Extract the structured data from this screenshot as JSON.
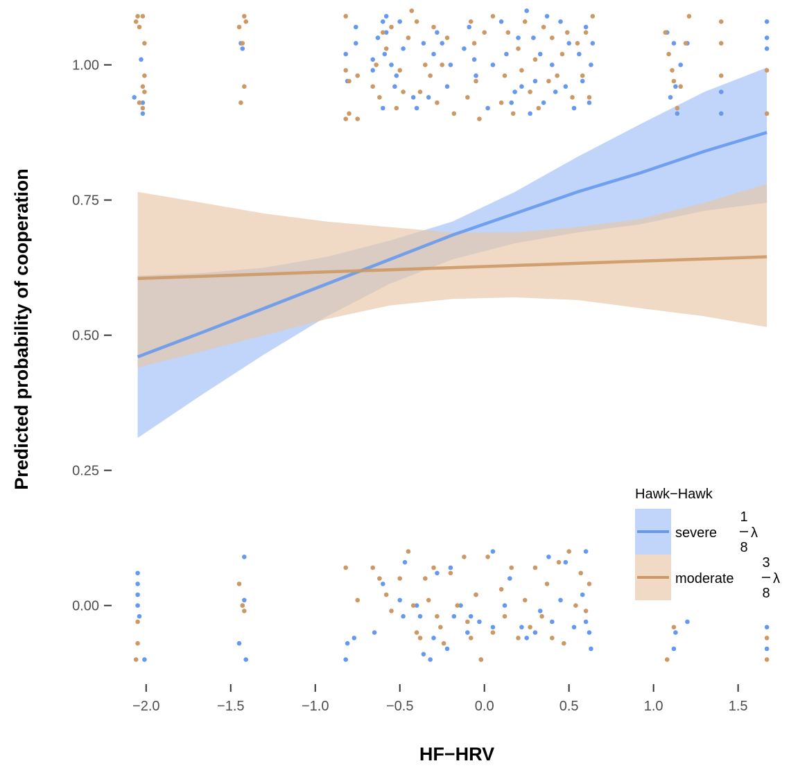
{
  "chart_data": {
    "type": "line",
    "xlabel": "HF−HRV",
    "ylabel": "Predicted probability of cooperation",
    "xlim": [
      -2.2,
      1.85
    ],
    "ylim": [
      -0.13,
      1.12
    ],
    "x_ticks": [
      -2.0,
      -1.5,
      -1.0,
      -0.5,
      0.0,
      0.5,
      1.0,
      1.5
    ],
    "x_tick_labels": [
      "−2.0",
      "−1.5",
      "−1.0",
      "−0.5",
      "0.0",
      "0.5",
      "1.0",
      "1.5"
    ],
    "y_ticks": [
      0.0,
      0.25,
      0.5,
      0.75,
      1.0
    ],
    "y_tick_labels": [
      "0.00",
      "0.25",
      "0.50",
      "0.75",
      "1.00"
    ],
    "grid": false,
    "legend": {
      "title": "Hawk−Hawk",
      "placement": "right",
      "entries": [
        {
          "label": "severe",
          "frac_num": "1",
          "frac_den": "8",
          "symbol": "λ"
        },
        {
          "label": "moderate",
          "frac_num": "3",
          "frac_den": "8",
          "symbol": "λ"
        }
      ]
    },
    "x_observed": [
      -2.05,
      -1.43,
      -0.82,
      -0.75,
      -0.6,
      -0.55,
      -0.5,
      -0.45,
      -0.4,
      -0.35,
      -0.3,
      -0.25,
      -0.2,
      -0.1,
      -0.08,
      0.0,
      0.05,
      0.12,
      0.18,
      0.25,
      0.3,
      0.35,
      0.4,
      0.45,
      0.5,
      0.6,
      0.64,
      1.08,
      1.12,
      1.15,
      1.2,
      1.4,
      1.67
    ],
    "series": [
      {
        "name": "severe",
        "color": "#6699ee",
        "band_color": "#9fbff7",
        "x": [
          -2.05,
          -1.67,
          -1.3,
          -0.93,
          -0.56,
          -0.19,
          0.18,
          0.55,
          0.92,
          1.3,
          1.67
        ],
        "y": [
          0.46,
          0.505,
          0.55,
          0.595,
          0.64,
          0.685,
          0.725,
          0.765,
          0.8,
          0.84,
          0.875
        ],
        "lower": [
          0.31,
          0.39,
          0.465,
          0.535,
          0.595,
          0.64,
          0.67,
          0.69,
          0.705,
          0.73,
          0.745
        ],
        "upper": [
          0.61,
          0.615,
          0.625,
          0.645,
          0.675,
          0.71,
          0.765,
          0.83,
          0.89,
          0.95,
          0.995
        ],
        "points_high": [
          [
            -2.07,
            0.94
          ],
          [
            -2.03,
            1.01
          ],
          [
            -2.02,
            0.93
          ],
          [
            -2.02,
            0.91
          ],
          [
            -1.44,
            1.04
          ],
          [
            -1.43,
            1.03
          ],
          [
            -0.82,
            1.02
          ],
          [
            -0.81,
            0.97
          ],
          [
            -0.76,
            1.07
          ],
          [
            -0.76,
            1.04
          ],
          [
            -0.66,
            0.99
          ],
          [
            -0.66,
            1.01
          ],
          [
            -0.63,
            1.05
          ],
          [
            -0.6,
            0.92
          ],
          [
            -0.6,
            1.08
          ],
          [
            -0.59,
            1.02
          ],
          [
            -0.58,
            1.09
          ],
          [
            -0.58,
            1.06
          ],
          [
            -0.55,
            1.0
          ],
          [
            -0.53,
            0.96
          ],
          [
            -0.52,
            0.98
          ],
          [
            -0.5,
            1.08
          ],
          [
            -0.48,
            1.03
          ],
          [
            -0.42,
            0.94
          ],
          [
            -0.4,
            0.92
          ],
          [
            -0.36,
            1.04
          ],
          [
            -0.33,
            0.94
          ],
          [
            -0.3,
            1.02
          ],
          [
            -0.28,
            1.06
          ],
          [
            -0.25,
            1.04
          ],
          [
            -0.22,
            0.96
          ],
          [
            -0.2,
            1.0
          ],
          [
            -0.12,
            1.03
          ],
          [
            -0.09,
            1.07
          ],
          [
            -0.06,
            1.01
          ],
          [
            -0.05,
            0.98
          ],
          [
            0.02,
            0.92
          ],
          [
            0.05,
            1.0
          ],
          [
            0.1,
            1.08
          ],
          [
            0.13,
            1.02
          ],
          [
            0.16,
            0.93
          ],
          [
            0.18,
            0.95
          ],
          [
            0.2,
            1.05
          ],
          [
            0.22,
            0.96
          ],
          [
            0.25,
            1.1
          ],
          [
            0.27,
            0.91
          ],
          [
            0.29,
            1.05
          ],
          [
            0.3,
            0.97
          ],
          [
            0.33,
            1.02
          ],
          [
            0.35,
            0.93
          ],
          [
            0.37,
            1.09
          ],
          [
            0.4,
            1.0
          ],
          [
            0.42,
            0.95
          ],
          [
            0.45,
            1.08
          ],
          [
            0.48,
            0.96
          ],
          [
            0.5,
            1.04
          ],
          [
            0.53,
            0.92
          ],
          [
            0.56,
            1.02
          ],
          [
            0.58,
            0.97
          ],
          [
            0.6,
            1.07
          ],
          [
            0.62,
            0.93
          ],
          [
            0.63,
            1.0
          ],
          [
            0.64,
            1.04
          ],
          [
            1.08,
            1.06
          ],
          [
            1.1,
            0.94
          ],
          [
            1.12,
            1.04
          ],
          [
            1.13,
            0.96
          ],
          [
            1.14,
            0.91
          ],
          [
            1.16,
            1.0
          ],
          [
            1.2,
            1.04
          ],
          [
            1.4,
            0.95
          ],
          [
            1.4,
            0.91
          ],
          [
            1.67,
            1.08
          ],
          [
            1.67,
            1.05
          ],
          [
            1.67,
            1.03
          ]
        ],
        "points_low": [
          [
            -2.05,
            0.06
          ],
          [
            -2.05,
            0.04
          ],
          [
            -2.05,
            0.02
          ],
          [
            -2.05,
            0.0
          ],
          [
            -2.04,
            -0.02
          ],
          [
            -2.01,
            -0.1
          ],
          [
            -1.43,
            0.0
          ],
          [
            -1.42,
            0.09
          ],
          [
            -1.42,
            0.01
          ],
          [
            -1.45,
            -0.07
          ],
          [
            -1.41,
            -0.1
          ],
          [
            -0.81,
            -0.07
          ],
          [
            -0.82,
            -0.1
          ],
          [
            -0.77,
            -0.06
          ],
          [
            -0.65,
            -0.05
          ],
          [
            -0.6,
            0.04
          ],
          [
            -0.5,
            0.01
          ],
          [
            -0.48,
            -0.02
          ],
          [
            -0.47,
            0.08
          ],
          [
            -0.4,
            0.0
          ],
          [
            -0.38,
            -0.02
          ],
          [
            -0.36,
            -0.09
          ],
          [
            -0.32,
            -0.1
          ],
          [
            -0.3,
            -0.06
          ],
          [
            -0.28,
            0.06
          ],
          [
            -0.22,
            -0.08
          ],
          [
            -0.2,
            0.07
          ],
          [
            -0.18,
            -0.02
          ],
          [
            -0.14,
            0.0
          ],
          [
            -0.1,
            -0.05
          ],
          [
            -0.08,
            -0.02
          ],
          [
            -0.05,
            0.02
          ],
          [
            -0.03,
            -0.03
          ],
          [
            -0.02,
            -0.1
          ],
          [
            0.05,
            0.1
          ],
          [
            0.05,
            -0.04
          ],
          [
            0.12,
            0.0
          ],
          [
            0.15,
            0.05
          ],
          [
            0.22,
            -0.04
          ],
          [
            0.25,
            -0.06
          ],
          [
            0.3,
            -0.05
          ],
          [
            0.33,
            -0.01
          ],
          [
            0.38,
            0.09
          ],
          [
            0.4,
            -0.03
          ],
          [
            0.45,
            0.01
          ],
          [
            0.48,
            0.08
          ],
          [
            0.53,
            -0.04
          ],
          [
            0.58,
            0.02
          ],
          [
            0.6,
            0.1
          ],
          [
            0.6,
            -0.03
          ],
          [
            0.62,
            -0.05
          ],
          [
            0.63,
            -0.08
          ],
          [
            1.12,
            -0.08
          ],
          [
            1.13,
            -0.05
          ],
          [
            1.2,
            -0.03
          ],
          [
            1.67,
            -0.04
          ],
          [
            1.67,
            -0.08
          ]
        ]
      },
      {
        "name": "moderate",
        "color": "#cc9966",
        "band_color": "#e8c6a6",
        "x": [
          -2.05,
          -1.67,
          -1.3,
          -0.93,
          -0.56,
          -0.19,
          0.18,
          0.55,
          0.92,
          1.3,
          1.67
        ],
        "y": [
          0.605,
          0.609,
          0.613,
          0.617,
          0.621,
          0.625,
          0.629,
          0.633,
          0.637,
          0.641,
          0.645
        ],
        "lower": [
          0.44,
          0.47,
          0.5,
          0.53,
          0.555,
          0.567,
          0.57,
          0.565,
          0.55,
          0.535,
          0.515
        ],
        "upper": [
          0.765,
          0.745,
          0.725,
          0.71,
          0.7,
          0.69,
          0.69,
          0.7,
          0.715,
          0.745,
          0.78
        ],
        "points_high": [
          [
            -2.06,
            1.08
          ],
          [
            -2.05,
            1.09
          ],
          [
            -2.04,
            1.07
          ],
          [
            -2.02,
            1.09
          ],
          [
            -2.01,
            1.04
          ],
          [
            -2.01,
            0.98
          ],
          [
            -2.02,
            0.96
          ],
          [
            -2.01,
            0.95
          ],
          [
            -2.04,
            0.93
          ],
          [
            -2.02,
            0.92
          ],
          [
            -1.45,
            1.07
          ],
          [
            -1.42,
            1.09
          ],
          [
            -1.41,
            1.08
          ],
          [
            -1.43,
            1.04
          ],
          [
            -1.42,
            0.96
          ],
          [
            -1.44,
            0.93
          ],
          [
            -0.82,
            1.09
          ],
          [
            -0.82,
            0.99
          ],
          [
            -0.8,
            0.97
          ],
          [
            -0.8,
            0.91
          ],
          [
            -0.82,
            0.9
          ],
          [
            -0.75,
            0.9
          ],
          [
            -0.75,
            0.98
          ],
          [
            -0.66,
            0.96
          ],
          [
            -0.64,
            1.0
          ],
          [
            -0.62,
            0.94
          ],
          [
            -0.6,
            1.06
          ],
          [
            -0.58,
            1.03
          ],
          [
            -0.55,
            1.07
          ],
          [
            -0.52,
            0.92
          ],
          [
            -0.5,
            0.99
          ],
          [
            -0.48,
            0.95
          ],
          [
            -0.45,
            1.05
          ],
          [
            -0.43,
            1.1
          ],
          [
            -0.4,
            1.08
          ],
          [
            -0.38,
            0.95
          ],
          [
            -0.35,
            1.0
          ],
          [
            -0.32,
            0.98
          ],
          [
            -0.3,
            1.07
          ],
          [
            -0.28,
            0.93
          ],
          [
            -0.25,
            1.0
          ],
          [
            -0.22,
            1.05
          ],
          [
            -0.18,
            0.91
          ],
          [
            -0.1,
            0.94
          ],
          [
            -0.08,
            1.08
          ],
          [
            -0.06,
            1.04
          ],
          [
            -0.05,
            0.97
          ],
          [
            -0.03,
            0.9
          ],
          [
            0.0,
            1.06
          ],
          [
            0.05,
            1.09
          ],
          [
            0.1,
            0.93
          ],
          [
            0.12,
            0.98
          ],
          [
            0.14,
            1.06
          ],
          [
            0.17,
            0.91
          ],
          [
            0.2,
            1.03
          ],
          [
            0.22,
            0.99
          ],
          [
            0.24,
            1.08
          ],
          [
            0.27,
            0.95
          ],
          [
            0.3,
            1.01
          ],
          [
            0.32,
            0.92
          ],
          [
            0.35,
            1.07
          ],
          [
            0.38,
            0.97
          ],
          [
            0.4,
            1.05
          ],
          [
            0.43,
            0.98
          ],
          [
            0.46,
            1.02
          ],
          [
            0.49,
            1.06
          ],
          [
            0.52,
            0.94
          ],
          [
            0.55,
            1.04
          ],
          [
            0.58,
            0.98
          ],
          [
            0.6,
            1.06
          ],
          [
            0.62,
            0.94
          ],
          [
            0.64,
            1.09
          ],
          [
            1.07,
            1.06
          ],
          [
            1.09,
            1.02
          ],
          [
            1.11,
            0.99
          ],
          [
            1.12,
            0.97
          ],
          [
            1.14,
            0.92
          ],
          [
            1.16,
            0.96
          ],
          [
            1.19,
            1.04
          ],
          [
            1.21,
            1.09
          ],
          [
            1.4,
            1.08
          ],
          [
            1.4,
            1.04
          ],
          [
            1.4,
            0.98
          ],
          [
            1.67,
            0.99
          ],
          [
            1.67,
            0.91
          ]
        ],
        "points_low": [
          [
            -2.05,
            -0.03
          ],
          [
            -2.05,
            -0.07
          ],
          [
            -2.06,
            -0.1
          ],
          [
            -1.45,
            0.04
          ],
          [
            -1.43,
            0.0
          ],
          [
            -1.42,
            -0.01
          ],
          [
            -0.82,
            0.07
          ],
          [
            -0.75,
            0.01
          ],
          [
            -0.66,
            0.07
          ],
          [
            -0.62,
            0.05
          ],
          [
            -0.58,
            0.02
          ],
          [
            -0.55,
            -0.01
          ],
          [
            -0.5,
            0.05
          ],
          [
            -0.45,
            0.1
          ],
          [
            -0.42,
            0.0
          ],
          [
            -0.4,
            -0.05
          ],
          [
            -0.38,
            -0.06
          ],
          [
            -0.35,
            0.05
          ],
          [
            -0.33,
            0.01
          ],
          [
            -0.3,
            0.07
          ],
          [
            -0.28,
            -0.02
          ],
          [
            -0.26,
            -0.04
          ],
          [
            -0.24,
            -0.07
          ],
          [
            -0.2,
            0.06
          ],
          [
            -0.16,
            0.0
          ],
          [
            -0.12,
            0.09
          ],
          [
            -0.1,
            -0.03
          ],
          [
            -0.08,
            -0.06
          ],
          [
            -0.05,
            0.02
          ],
          [
            -0.02,
            -0.1
          ],
          [
            0.02,
            0.09
          ],
          [
            0.05,
            -0.05
          ],
          [
            0.1,
            0.03
          ],
          [
            0.12,
            -0.02
          ],
          [
            0.16,
            0.07
          ],
          [
            0.2,
            -0.06
          ],
          [
            0.24,
            0.01
          ],
          [
            0.27,
            -0.04
          ],
          [
            0.3,
            0.07
          ],
          [
            0.34,
            -0.02
          ],
          [
            0.37,
            0.04
          ],
          [
            0.4,
            -0.06
          ],
          [
            0.44,
            0.08
          ],
          [
            0.47,
            -0.07
          ],
          [
            0.5,
            0.1
          ],
          [
            0.54,
            0.0
          ],
          [
            0.57,
            0.06
          ],
          [
            0.6,
            -0.01
          ],
          [
            0.62,
            0.04
          ],
          [
            1.08,
            -0.1
          ],
          [
            1.12,
            -0.04
          ],
          [
            1.67,
            -0.1
          ],
          [
            1.67,
            -0.06
          ]
        ]
      }
    ]
  }
}
